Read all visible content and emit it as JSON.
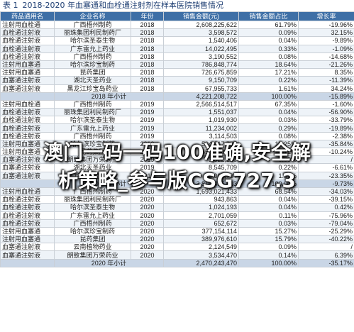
{
  "title": {
    "number": "表 1",
    "text": "2018-2020 年血塞通和血栓通注射剂在样本医院销售情况"
  },
  "headers": [
    "药品通用名",
    "企业名称",
    "年份",
    "销售金额(元)",
    "销售金额占比",
    "增长率"
  ],
  "rows": [
    [
      "注射用血栓通",
      "广西梧州制药",
      "2018",
      "2,608,225,622",
      "61.79%",
      "-19.96%"
    ],
    [
      "血栓通注射液",
      "丽珠集团利民制药厂",
      "2018",
      "3,598,572",
      "0.09%",
      "32.15%"
    ],
    [
      "血栓通注射液",
      "哈尔滨圣泰生物",
      "2018",
      "1,540,406",
      "0.04%",
      "-9.89%"
    ],
    [
      "血栓通注射液",
      "广东雷允上药业",
      "2018",
      "14,022,495",
      "0.33%",
      "-1.09%"
    ],
    [
      "血栓通注射液",
      "广西梧州制药",
      "2018",
      "3,190,552",
      "0.08%",
      "-14.68%"
    ],
    [
      "注射用血塞通",
      "哈尔滨珍宝制药",
      "2018",
      "786,848,774",
      "18.64%",
      "-21.26%"
    ],
    [
      "注射用血塞通",
      "昆药集团",
      "2018",
      "726,675,859",
      "17.21%",
      "8.35%"
    ],
    [
      "血塞通注射液",
      "湖北天圣药业",
      "2018",
      "9,150,709",
      "0.22%",
      "-11.39%"
    ],
    [
      "血塞通注射液",
      "黑龙江珍宝岛药业",
      "2018",
      "67,955,733",
      "1.61%",
      "34.24%"
    ],
    {
      "subtotal": true,
      "label": "2018 年小计",
      "amount": "4,221,208,722",
      "share": "100.00%",
      "growth": "-15.89%"
    },
    [
      "注射用血栓通",
      "广西梧州制药",
      "2019",
      "2,566,514,517",
      "67.35%",
      "-1.60%"
    ],
    [
      "血栓通注射液",
      "丽珠集团利民制药厂",
      "2019",
      "1,551,037",
      "0.04%",
      "-56.90%"
    ],
    [
      "血栓通注射液",
      "哈尔滨圣泰生物",
      "2019",
      "1,019,930",
      "0.03%",
      "-33.79%"
    ],
    [
      "血栓通注射液",
      "广东雷允上药业",
      "2019",
      "11,234,002",
      "0.29%",
      "-19.89%"
    ],
    [
      "血栓通注射液",
      "广西梧州制药",
      "2019",
      "3,114,503",
      "0.08%",
      "-2.38%"
    ],
    [
      "注射用血塞通",
      "哈尔滨珍宝制药",
      "2019",
      "504,817,777",
      "13.25%",
      "-35.84%"
    ],
    [
      "注射用血塞通",
      "昆药集团",
      "2019",
      "652,300,814",
      "17.12%",
      "-10.24%"
    ],
    [
      "血塞通注射液",
      "朗致集团万荣药业",
      "2019",
      "3,322,220",
      "0.09%",
      "/"
    ],
    [
      "血塞通注射液",
      "湖北天圣药业",
      "2019",
      "8,545,709",
      "0.22%",
      "-6.61%"
    ],
    [
      "血塞通注射液",
      "黑龙江珍宝岛药业",
      "2019",
      "52,084,794",
      "1.37%",
      "-23.35%"
    ],
    {
      "subtotal": true,
      "label": "2019 年小计",
      "amount": "3,810,455,513",
      "share": "100.00%",
      "growth": "-9.73%"
    },
    [
      "注射用血栓通",
      "广西梧州制药",
      "2020",
      "1,693,021,433",
      "68.54%",
      "-34.03%"
    ],
    [
      "血栓通注射液",
      "丽珠集团利民制药厂",
      "2020",
      "943,863",
      "0.04%",
      "-39.15%"
    ],
    [
      "血栓通注射液",
      "哈尔滨圣泰生物",
      "2020",
      "1,024,193",
      "0.04%",
      "0.42%"
    ],
    [
      "血栓通注射液",
      "广东雷允上药业",
      "2020",
      "2,701,059",
      "0.11%",
      "-75.96%"
    ],
    [
      "血栓通注射液",
      "广西梧州制药",
      "2020",
      "652,672",
      "0.03%",
      "-79.04%"
    ],
    [
      "注射用血塞通",
      "哈尔滨珍宝制药",
      "2020",
      "377,154,114",
      "15.27%",
      "-25.29%"
    ],
    [
      "注射用血塞通",
      "昆药集团",
      "2020",
      "389,976,610",
      "15.79%",
      "-40.22%"
    ],
    [
      "血塞通注射液",
      "云南植物药业",
      "2020",
      "2,124,549",
      "0.09%",
      "/"
    ],
    [
      "血塞通注射液",
      "朗致集团万荣药业",
      "2020",
      "3,534,470",
      "0.14%",
      "6.39%"
    ],
    {
      "subtotal": true,
      "label": "2020 年小计",
      "amount": "2,470,243,470",
      "share": "100.00%",
      "growth": "-35.17%"
    }
  ],
  "overlay": {
    "line1": "澳门一码一码100准确,安全解",
    "line2": "析策略_参与版CSG727.3"
  }
}
